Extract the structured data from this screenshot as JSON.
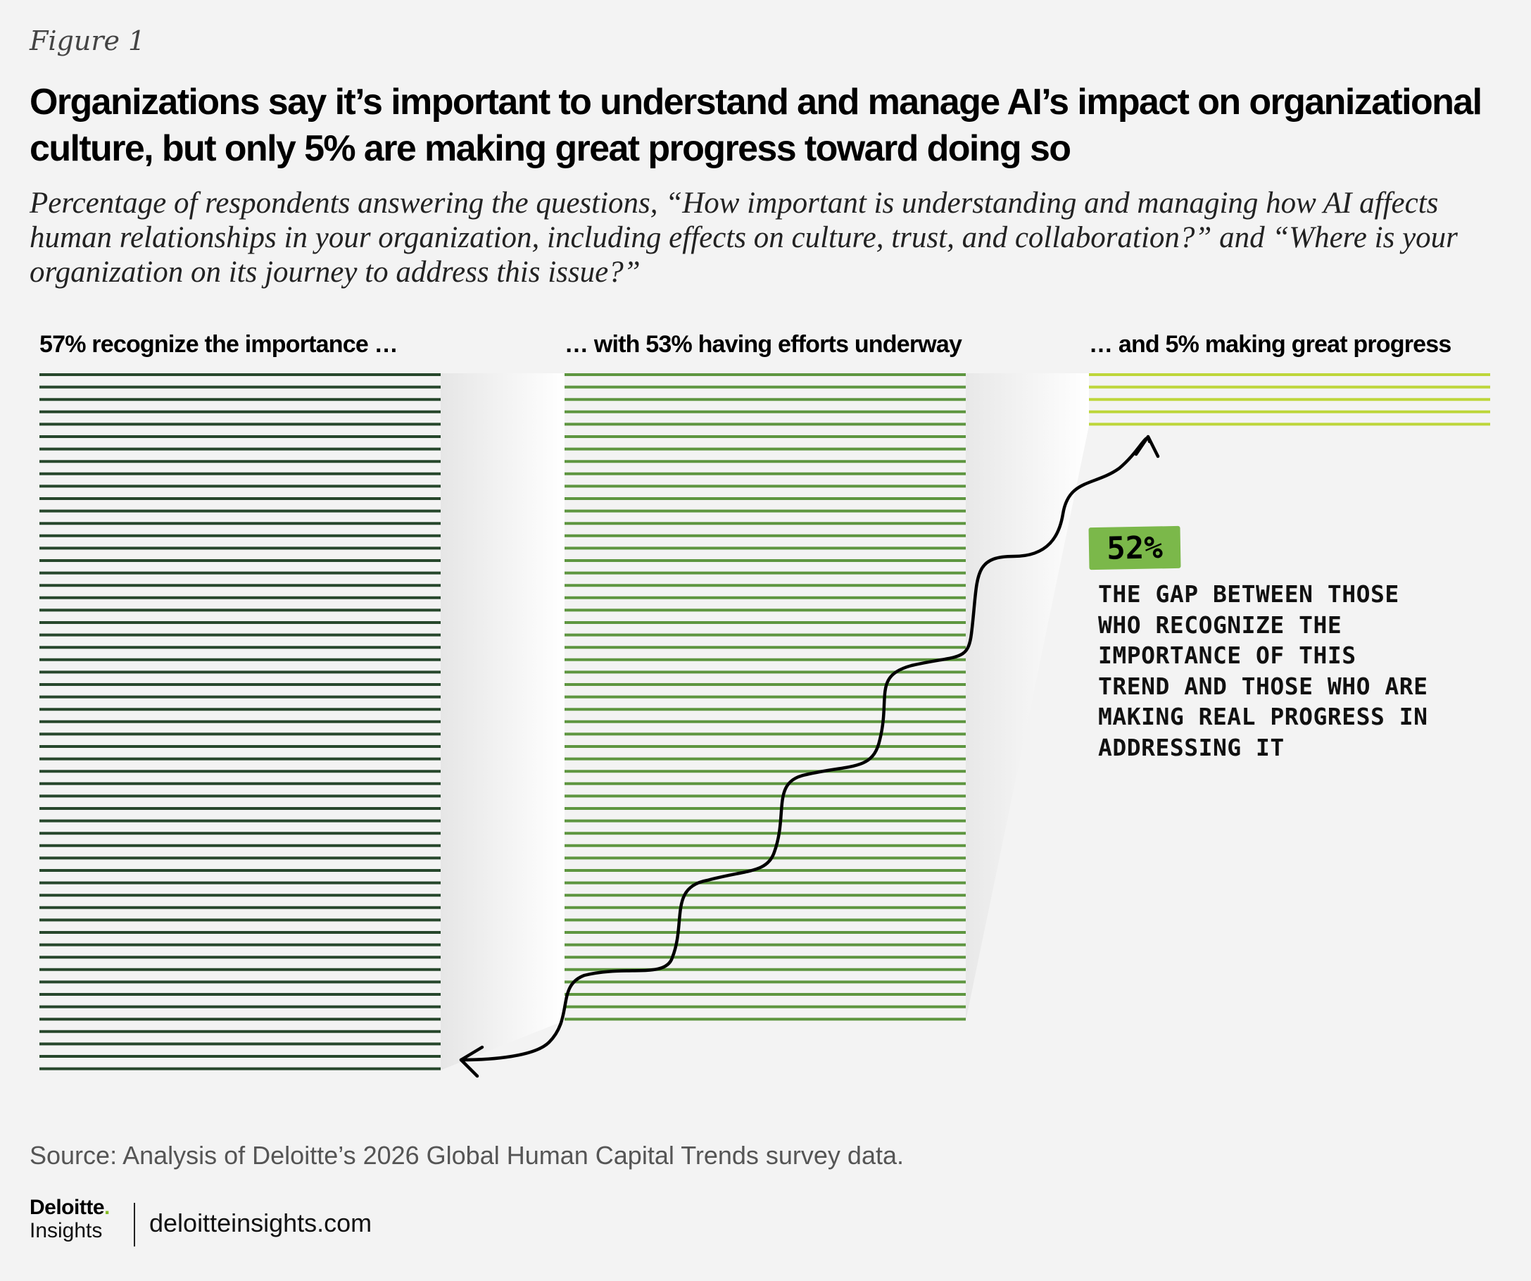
{
  "figure_label": "Figure 1",
  "title": "Organizations say it’s important to understand and manage AI’s impact on organizational culture, but only 5% are making great progress toward doing so",
  "subtitle": "Percentage of respondents answering the questions, “How important is understanding and managing how AI affects human relationships in your organization, including effects on culture, trust, and collaboration?” and “Where is your organization on its journey to address this issue?”",
  "chart_data": {
    "type": "bar",
    "title": "Organizations say it’s important to understand and manage AI’s impact on organizational culture, but only 5% are making great progress toward doing so",
    "categories": [
      "57% recognize the importance …",
      "… with 53% having efforts underway",
      "… and 5% making great progress"
    ],
    "values": [
      57,
      53,
      5
    ],
    "unit": "%",
    "colors": [
      "#27472c",
      "#5e9640",
      "#bdd63a"
    ],
    "annotation": {
      "value_label": "52%",
      "text": "The gap between those who recognize the importance of this trend and those who are making real progress in addressing it"
    }
  },
  "source": "Source: Analysis of Deloitte’s 2026 Global Human Capital Trends survey data.",
  "brand": {
    "name": "Deloitte",
    "dot": ".",
    "sub": "Insights"
  },
  "site": "deloitteinsights.com"
}
